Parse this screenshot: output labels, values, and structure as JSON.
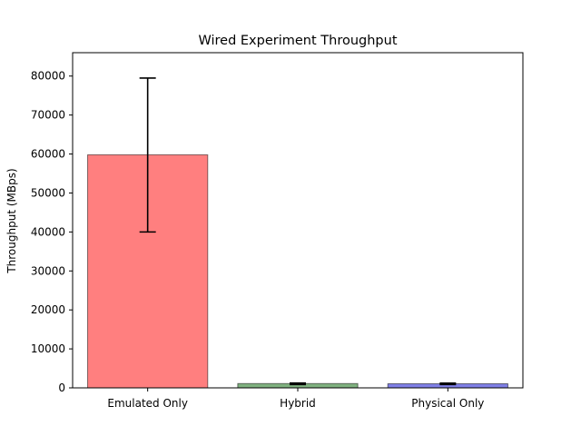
{
  "chart_data": {
    "type": "bar",
    "title": "Wired Experiment Throughput",
    "xlabel": "",
    "ylabel": "Throughput (MBps)",
    "categories": [
      "Emulated Only",
      "Hybrid",
      "Physical Only"
    ],
    "values": [
      59800,
      1100,
      1050
    ],
    "error_low": [
      40000,
      850,
      850
    ],
    "error_high": [
      79500,
      1250,
      1200
    ],
    "colors": [
      "#ff0000",
      "#006400",
      "#0000cd"
    ],
    "bar_alpha": 0.5,
    "ylim": [
      0,
      86000
    ],
    "yticks": [
      0,
      10000,
      20000,
      30000,
      40000,
      50000,
      60000,
      70000,
      80000
    ],
    "grid": false
  }
}
